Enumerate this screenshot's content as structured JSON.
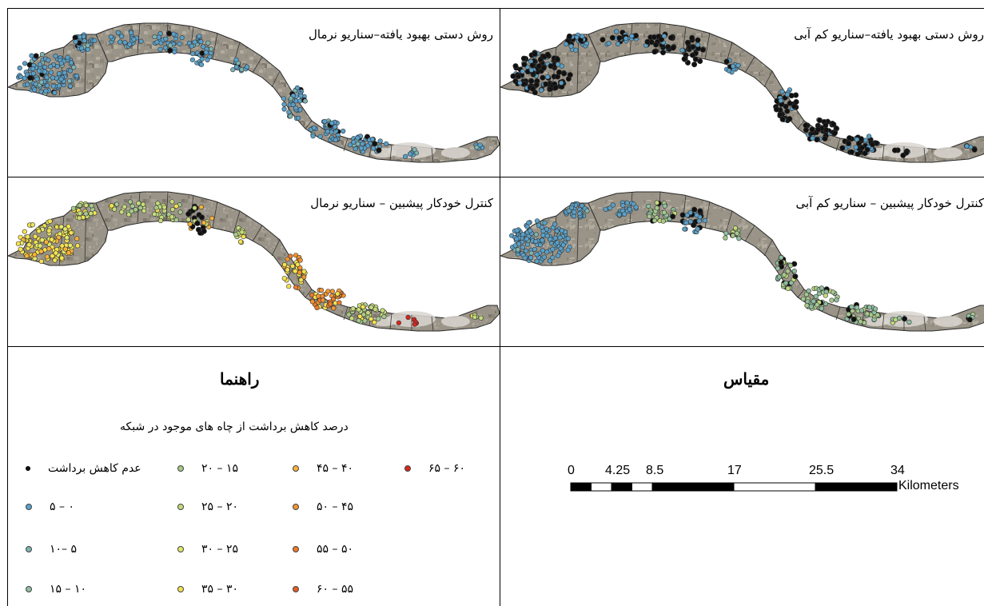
{
  "panels": [
    {
      "id": "tl",
      "title": "روش دستی بهبود یافته–سناریو نرمال",
      "scheme": "blue"
    },
    {
      "id": "tr",
      "title": "روش دستی بهبود یافته–سناریو کم آبی",
      "scheme": "black"
    },
    {
      "id": "bl",
      "title": "کنترل خودکار پیشبین – سناریو نرمال",
      "scheme": "yellow"
    },
    {
      "id": "br",
      "title": "کنترل خودکار پیشبین – سناریو کم آبی",
      "scheme": "mixed"
    }
  ],
  "legend": {
    "title": "راهنما",
    "subtitle": "درصد کاهش برداشت از چاه های موجود در شبکه",
    "items": [
      {
        "label": "عدم کاهش برداشت",
        "color": "#111111"
      },
      {
        "label": "۰ – ۵",
        "color": "#5aa0c8"
      },
      {
        "label": "۵ –۱۰",
        "color": "#7fb3b0"
      },
      {
        "label": "۱۰ – ۱۵",
        "color": "#8fbfa0"
      },
      {
        "label": "۱۵ – ۲۰",
        "color": "#a6c98c"
      },
      {
        "label": "۲۰ – ۲۵",
        "color": "#c4db7a"
      },
      {
        "label": "۲۵ – ۳۰",
        "color": "#e3e86a"
      },
      {
        "label": "۳۰ – ۳۵",
        "color": "#f5e24e"
      },
      {
        "label": "۴۰ – ۴۵",
        "color": "#f7b23a"
      },
      {
        "label": "۴۵ – ۵۰",
        "color": "#f29432"
      },
      {
        "label": "۵۰ – ۵۵",
        "color": "#eb7a2c"
      },
      {
        "label": "۵۵ – ۶۰",
        "color": "#e35e26"
      },
      {
        "label": "۶۰ – ۶۵",
        "color": "#d7261e"
      }
    ]
  },
  "scale": {
    "title": "مقیاس",
    "ticks": [
      "0",
      "4.25",
      "8.5",
      "17",
      "25.5",
      "34"
    ],
    "tick_values": [
      0,
      4.25,
      8.5,
      17,
      25.5,
      34
    ],
    "unit": "Kilometers"
  }
}
